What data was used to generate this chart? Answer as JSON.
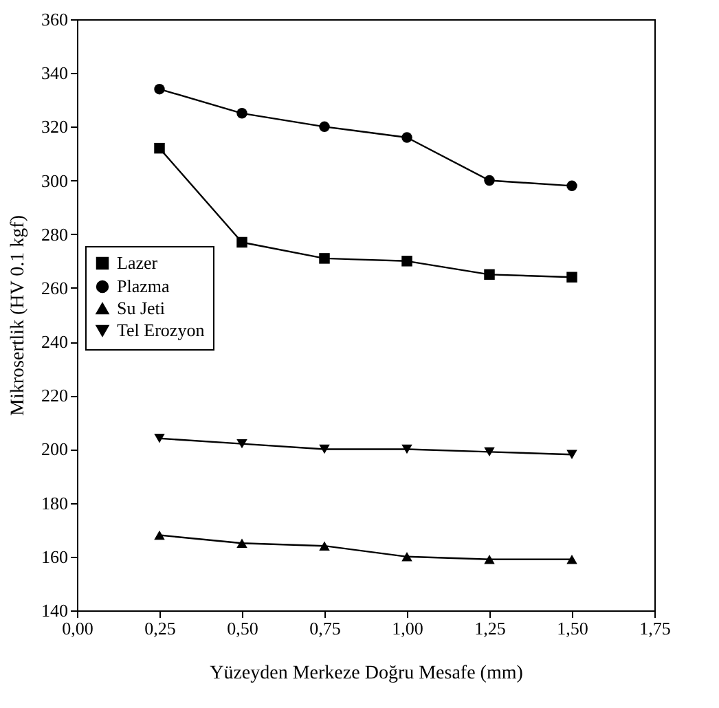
{
  "chart_data": {
    "type": "line",
    "xlabel": "Yüzeyden Merkeze Doğru Mesafe (mm)",
    "ylabel": "Mikrosertlik (HV 0.1 kgf)",
    "x": [
      0.25,
      0.5,
      0.75,
      1.0,
      1.25,
      1.5
    ],
    "series": [
      {
        "name": "Lazer",
        "color": "#000000",
        "marker": "square",
        "values": [
          312,
          277,
          271,
          270,
          265,
          264
        ]
      },
      {
        "name": "Plazma",
        "color": "#000000",
        "marker": "circle",
        "values": [
          334,
          325,
          320,
          316,
          300,
          298
        ]
      },
      {
        "name": "Su Jeti",
        "color": "#000000",
        "marker": "triangle",
        "values": [
          168,
          165,
          164,
          160,
          159,
          159
        ]
      },
      {
        "name": "Tel Erozyon",
        "color": "#000000",
        "marker": "triangle-down",
        "values": [
          204,
          202,
          200,
          200,
          199,
          198
        ]
      }
    ],
    "xlim": [
      0,
      1.75
    ],
    "xticks": [
      {
        "value": 0,
        "label": "0,00"
      },
      {
        "value": 0.25,
        "label": "0,25"
      },
      {
        "value": 0.5,
        "label": "0,50"
      },
      {
        "value": 0.75,
        "label": "0,75"
      },
      {
        "value": 1.0,
        "label": "1,00"
      },
      {
        "value": 1.25,
        "label": "1,25"
      },
      {
        "value": 1.5,
        "label": "1,50"
      },
      {
        "value": 1.75,
        "label": "1,75"
      }
    ],
    "ylim": [
      140,
      360
    ],
    "yticks": [
      140,
      160,
      180,
      200,
      220,
      240,
      260,
      280,
      300,
      320,
      340,
      360
    ],
    "legend": "left",
    "grid": false,
    "line_style": "solid"
  }
}
